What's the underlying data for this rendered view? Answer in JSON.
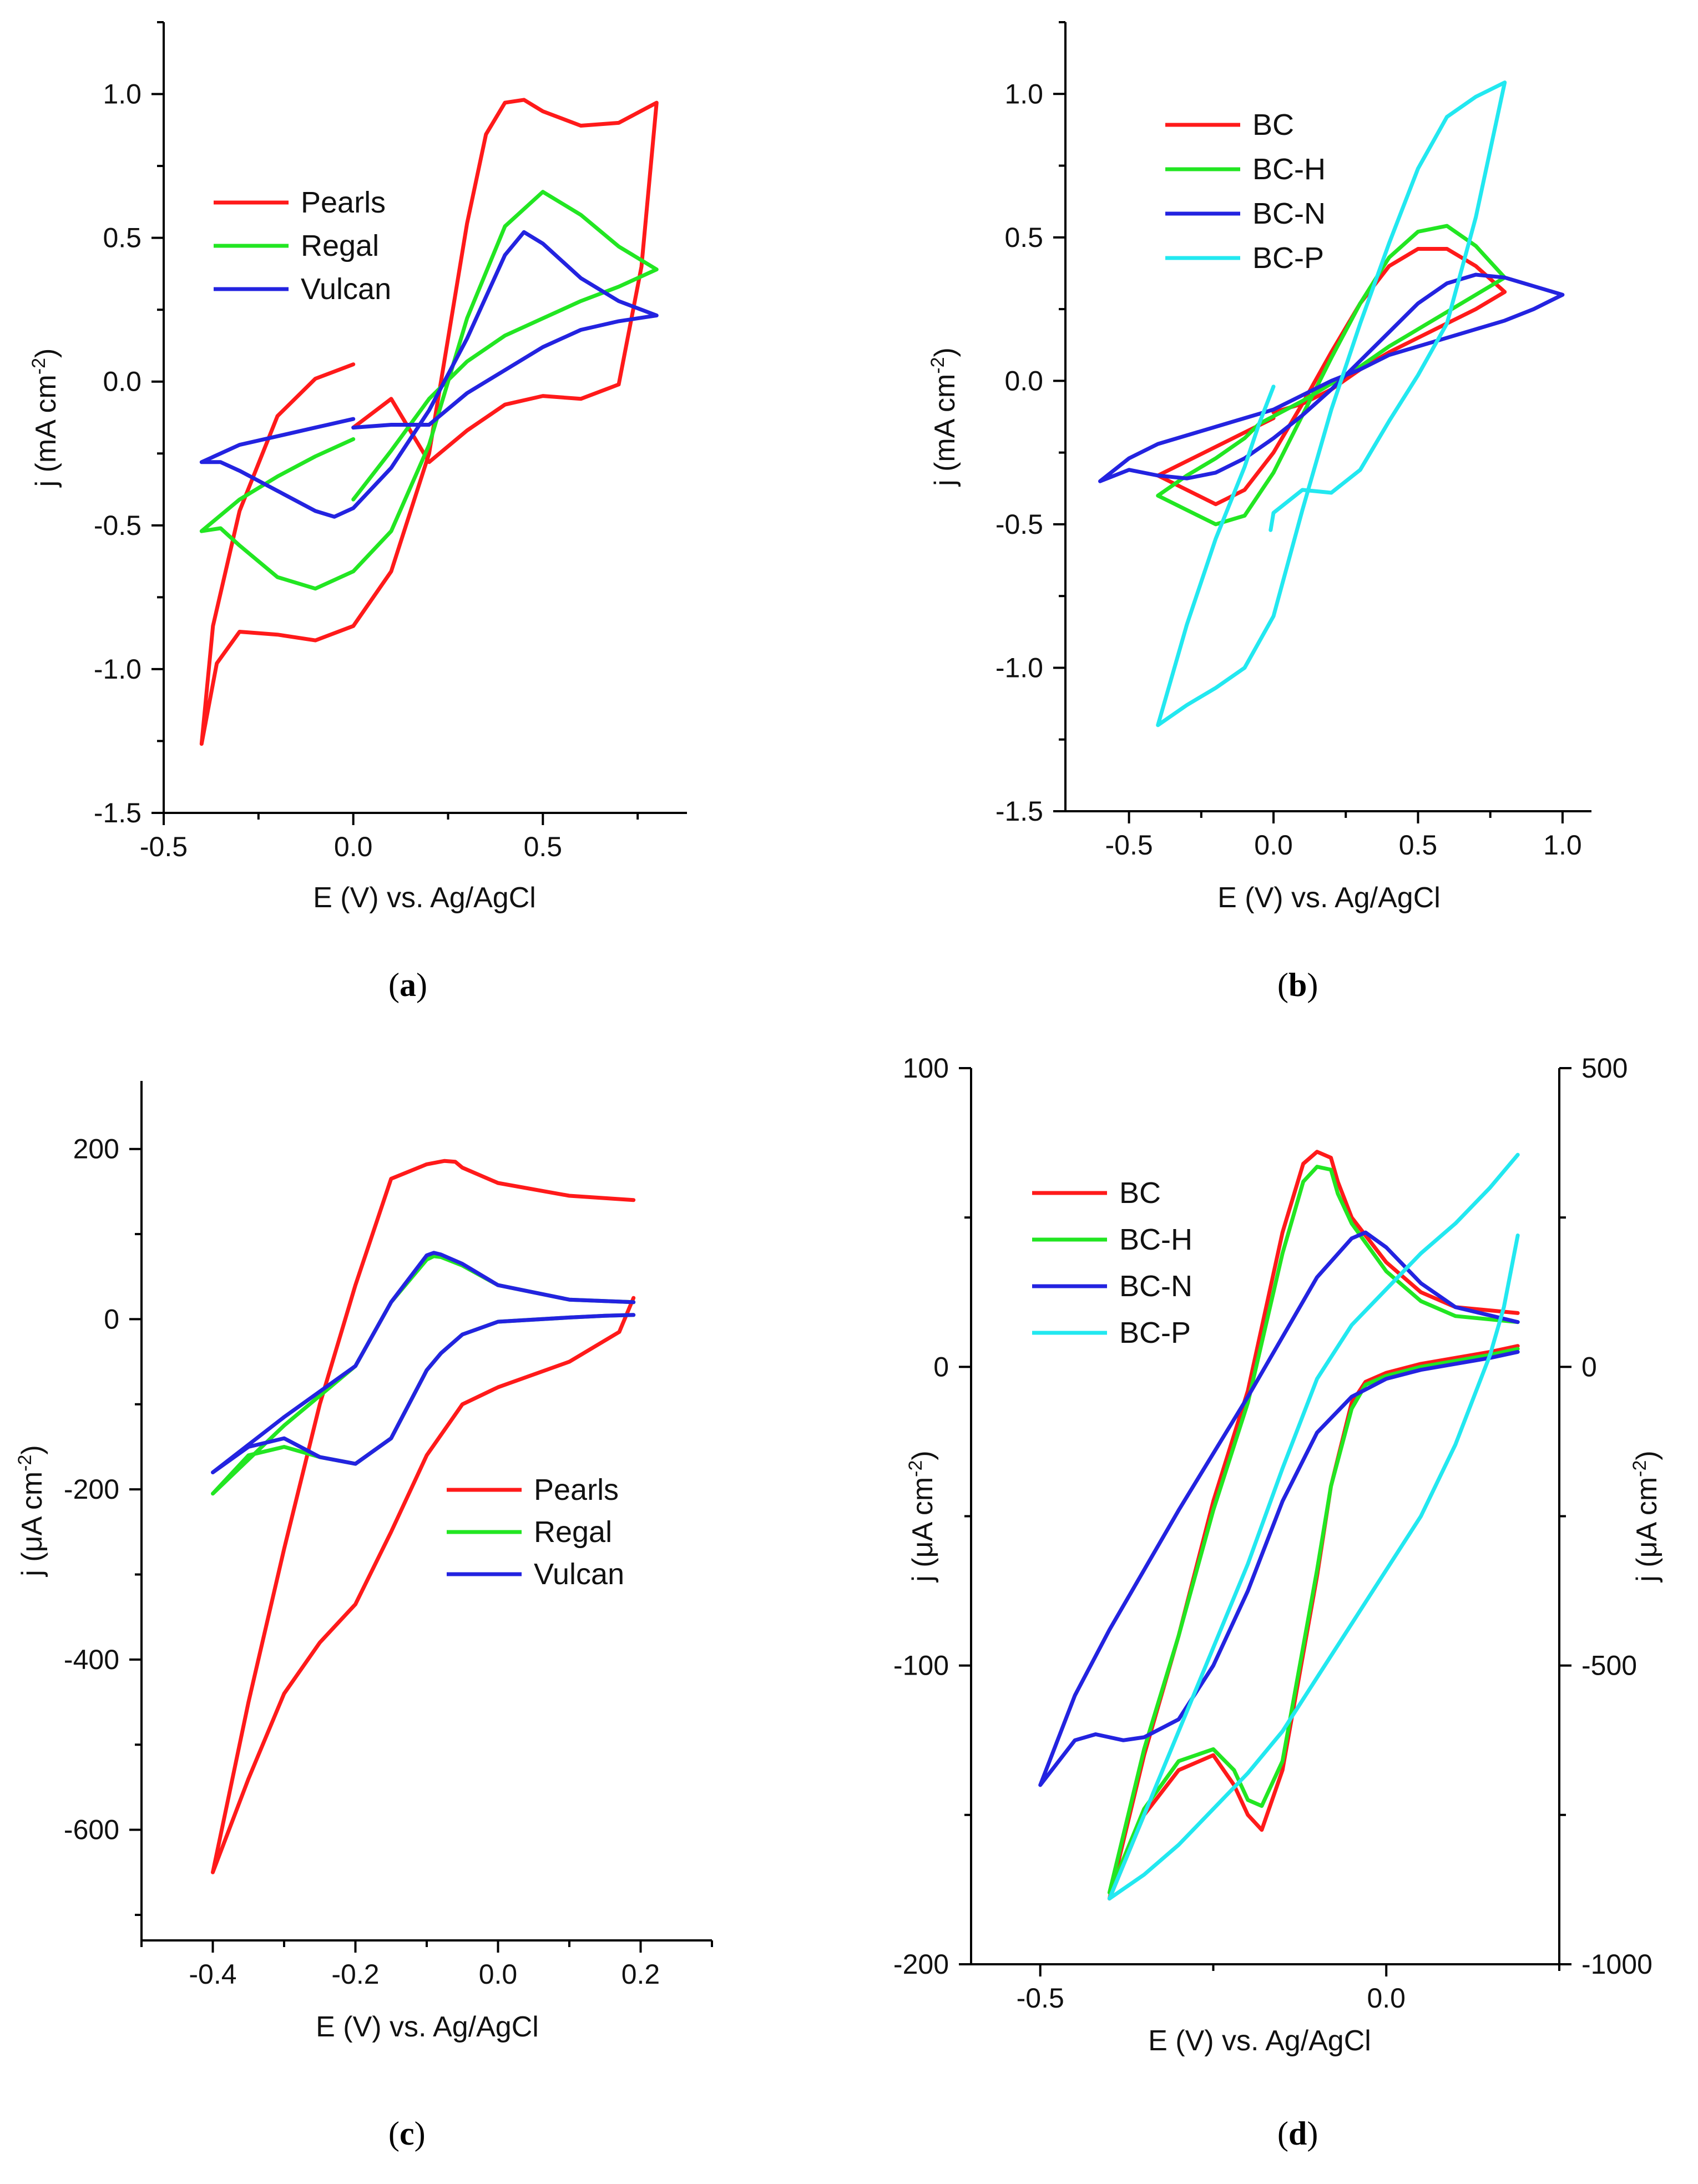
{
  "colors": {
    "Pearls": "#ff1a1a",
    "Regal": "#22e622",
    "Vulcan": "#2323e0",
    "BC": "#ff1a1a",
    "BC-H": "#22e622",
    "BC-N": "#2323e0",
    "BC-P": "#22e8f0",
    "right_axis": "#22e8f0"
  },
  "chart_data": [
    {
      "id": "a",
      "panel_label": "a",
      "type": "line",
      "xlabel": "E (V) vs. Ag/AgCl",
      "ylabel": "j (mA cm-2)",
      "xlim": [
        -0.5,
        0.88
      ],
      "ylim": [
        -1.5,
        1.25
      ],
      "xticks": [
        "-0.5",
        "0.0",
        "0.5"
      ],
      "yticks": [
        "-1.5",
        "-1.0",
        "-0.5",
        "0.0",
        "0.5",
        "1.0"
      ],
      "legend": {
        "entries": [
          "Pearls",
          "Regal",
          "Vulcan"
        ],
        "position": "upper-left"
      },
      "series": [
        {
          "name": "Pearls",
          "x": [
            0.0,
            -0.1,
            -0.2,
            -0.3,
            -0.37,
            -0.4,
            -0.36,
            -0.3,
            -0.2,
            -0.1,
            0.0,
            0.1,
            0.2,
            0.3,
            0.35,
            0.4,
            0.45,
            0.5,
            0.6,
            0.7,
            0.8,
            0.76,
            0.7,
            0.6,
            0.5,
            0.4,
            0.3,
            0.2,
            0.1,
            0.0
          ],
          "y": [
            0.06,
            0.01,
            -0.12,
            -0.45,
            -0.85,
            -1.26,
            -0.98,
            -0.87,
            -0.88,
            -0.9,
            -0.85,
            -0.66,
            -0.25,
            0.55,
            0.86,
            0.97,
            0.98,
            0.94,
            0.89,
            0.9,
            0.97,
            0.4,
            -0.01,
            -0.06,
            -0.05,
            -0.08,
            -0.17,
            -0.28,
            -0.06,
            -0.16
          ]
        },
        {
          "name": "Regal",
          "x": [
            0.0,
            -0.1,
            -0.2,
            -0.3,
            -0.4,
            -0.35,
            -0.3,
            -0.2,
            -0.1,
            0.0,
            0.1,
            0.2,
            0.3,
            0.4,
            0.5,
            0.6,
            0.7,
            0.8,
            0.7,
            0.6,
            0.5,
            0.4,
            0.3,
            0.2,
            0.1,
            0.0
          ],
          "y": [
            -0.2,
            -0.26,
            -0.33,
            -0.41,
            -0.52,
            -0.51,
            -0.57,
            -0.68,
            -0.72,
            -0.66,
            -0.52,
            -0.22,
            0.22,
            0.54,
            0.66,
            0.58,
            0.47,
            0.39,
            0.33,
            0.28,
            0.22,
            0.16,
            0.07,
            -0.06,
            -0.24,
            -0.41
          ]
        },
        {
          "name": "Vulcan",
          "x": [
            0.0,
            -0.1,
            -0.2,
            -0.3,
            -0.4,
            -0.35,
            -0.3,
            -0.2,
            -0.1,
            -0.05,
            0.0,
            0.1,
            0.2,
            0.3,
            0.4,
            0.45,
            0.5,
            0.6,
            0.7,
            0.8,
            0.7,
            0.6,
            0.5,
            0.4,
            0.3,
            0.2,
            0.1,
            0.0
          ],
          "y": [
            -0.13,
            -0.16,
            -0.19,
            -0.22,
            -0.28,
            -0.28,
            -0.31,
            -0.38,
            -0.45,
            -0.47,
            -0.44,
            -0.3,
            -0.1,
            0.15,
            0.44,
            0.52,
            0.48,
            0.36,
            0.28,
            0.23,
            0.21,
            0.18,
            0.12,
            0.04,
            -0.04,
            -0.15,
            -0.15,
            -0.16
          ]
        }
      ]
    },
    {
      "id": "b",
      "panel_label": "b",
      "type": "line",
      "xlabel": "E (V) vs. Ag/AgCl",
      "ylabel": "j (mA cm-2)",
      "xlim": [
        -0.72,
        1.1
      ],
      "ylim": [
        -1.5,
        1.25
      ],
      "xticks": [
        "-0.5",
        "0.0",
        "0.5",
        "1.0"
      ],
      "yticks": [
        "-1.5",
        "-1.0",
        "-0.5",
        "0.0",
        "0.5",
        "1.0"
      ],
      "legend": {
        "entries": [
          "BC",
          "BC-H",
          "BC-N",
          "BC-P"
        ],
        "position": "upper-left"
      },
      "series": [
        {
          "name": "BC",
          "x": [
            0.0,
            -0.1,
            -0.2,
            -0.3,
            -0.4,
            -0.3,
            -0.2,
            -0.1,
            0.0,
            0.1,
            0.2,
            0.3,
            0.4,
            0.5,
            0.6,
            0.7,
            0.8,
            0.7,
            0.6,
            0.5,
            0.4,
            0.3,
            0.2,
            0.1,
            0.0
          ],
          "y": [
            -0.13,
            -0.18,
            -0.23,
            -0.28,
            -0.33,
            -0.38,
            -0.43,
            -0.38,
            -0.25,
            -0.08,
            0.1,
            0.27,
            0.4,
            0.46,
            0.46,
            0.4,
            0.31,
            0.25,
            0.2,
            0.15,
            0.1,
            0.04,
            -0.03,
            -0.08,
            -0.11
          ]
        },
        {
          "name": "BC-H",
          "x": [
            -0.05,
            -0.1,
            -0.2,
            -0.3,
            -0.4,
            -0.3,
            -0.2,
            -0.1,
            0.0,
            0.1,
            0.2,
            0.3,
            0.4,
            0.5,
            0.6,
            0.7,
            0.8,
            0.7,
            0.6,
            0.5,
            0.4,
            0.3,
            0.2,
            0.1,
            -0.05
          ],
          "y": [
            -0.15,
            -0.2,
            -0.27,
            -0.33,
            -0.4,
            -0.45,
            -0.5,
            -0.47,
            -0.32,
            -0.12,
            0.08,
            0.27,
            0.43,
            0.52,
            0.54,
            0.47,
            0.36,
            0.3,
            0.24,
            0.18,
            0.12,
            0.05,
            -0.01,
            -0.07,
            -0.15
          ]
        },
        {
          "name": "BC-N",
          "x": [
            0.0,
            -0.1,
            -0.2,
            -0.3,
            -0.4,
            -0.5,
            -0.6,
            -0.5,
            -0.4,
            -0.3,
            -0.2,
            -0.1,
            0.0,
            0.1,
            0.2,
            0.3,
            0.4,
            0.5,
            0.6,
            0.7,
            0.8,
            0.9,
            1.0,
            0.9,
            0.8,
            0.7,
            0.6,
            0.5,
            0.4,
            0.3,
            0.2,
            0.1,
            0.0
          ],
          "y": [
            -0.1,
            -0.13,
            -0.16,
            -0.19,
            -0.22,
            -0.27,
            -0.35,
            -0.31,
            -0.33,
            -0.34,
            -0.32,
            -0.27,
            -0.2,
            -0.12,
            -0.03,
            0.07,
            0.17,
            0.27,
            0.34,
            0.37,
            0.36,
            0.33,
            0.3,
            0.25,
            0.21,
            0.18,
            0.15,
            0.12,
            0.09,
            0.04,
            0.0,
            -0.05,
            -0.1
          ]
        },
        {
          "name": "BC-P",
          "x": [
            0.0,
            -0.05,
            -0.1,
            -0.2,
            -0.3,
            -0.4,
            -0.3,
            -0.2,
            -0.1,
            0.0,
            0.1,
            0.2,
            0.3,
            0.4,
            0.5,
            0.6,
            0.7,
            0.8,
            0.7,
            0.6,
            0.5,
            0.4,
            0.3,
            0.2,
            0.1,
            0.0,
            -0.01
          ],
          "y": [
            -0.02,
            -0.15,
            -0.3,
            -0.55,
            -0.85,
            -1.2,
            -1.13,
            -1.07,
            -1.0,
            -0.82,
            -0.45,
            -0.1,
            0.2,
            0.48,
            0.74,
            0.92,
            0.99,
            1.04,
            0.57,
            0.2,
            0.02,
            -0.14,
            -0.31,
            -0.39,
            -0.38,
            -0.46,
            -0.52
          ]
        }
      ]
    },
    {
      "id": "c",
      "panel_label": "c",
      "type": "line",
      "xlabel": "E (V) vs. Ag/AgCl",
      "ylabel": "j (μA cm-2)",
      "xlim": [
        -0.5,
        0.3
      ],
      "ylim": [
        -730,
        280
      ],
      "xticks": [
        "-0.4",
        "-0.2",
        "0.0",
        "0.2"
      ],
      "yticks": [
        "-600",
        "-400",
        "-200",
        "0",
        "200"
      ],
      "legend": {
        "entries": [
          "Pearls",
          "Regal",
          "Vulcan"
        ],
        "position": "lower-right"
      },
      "series": [
        {
          "name": "Pearls",
          "x": [
            0.19,
            0.17,
            0.1,
            0.0,
            -0.05,
            -0.1,
            -0.15,
            -0.2,
            -0.25,
            -0.3,
            -0.35,
            -0.4,
            -0.35,
            -0.3,
            -0.25,
            -0.2,
            -0.15,
            -0.1,
            -0.075,
            -0.06,
            -0.05,
            0.0,
            0.1,
            0.19
          ],
          "y": [
            25,
            -15,
            -50,
            -80,
            -100,
            -160,
            -250,
            -335,
            -380,
            -440,
            -540,
            -650,
            -450,
            -270,
            -100,
            40,
            165,
            182,
            186,
            185,
            178,
            160,
            145,
            140
          ]
        },
        {
          "name": "Regal",
          "x": [
            0.19,
            0.15,
            0.1,
            0.0,
            -0.05,
            -0.08,
            -0.1,
            -0.15,
            -0.2,
            -0.25,
            -0.3,
            -0.35,
            -0.4,
            -0.3,
            -0.2,
            -0.15,
            -0.1,
            -0.09,
            -0.08,
            -0.05,
            0.0,
            0.1,
            0.19
          ],
          "y": [
            5,
            4,
            2,
            -3,
            -18,
            -40,
            -60,
            -140,
            -170,
            -162,
            -150,
            -160,
            -205,
            -125,
            -55,
            20,
            70,
            74,
            73,
            63,
            40,
            23,
            20
          ]
        },
        {
          "name": "Vulcan",
          "x": [
            0.19,
            0.15,
            0.1,
            0.0,
            -0.05,
            -0.08,
            -0.1,
            -0.15,
            -0.2,
            -0.25,
            -0.3,
            -0.35,
            -0.4,
            -0.3,
            -0.2,
            -0.15,
            -0.1,
            -0.09,
            -0.08,
            -0.05,
            0.0,
            0.1,
            0.19
          ],
          "y": [
            5,
            4,
            2,
            -3,
            -18,
            -40,
            -60,
            -140,
            -170,
            -162,
            -140,
            -150,
            -180,
            -115,
            -55,
            20,
            75,
            78,
            76,
            65,
            40,
            23,
            20
          ]
        }
      ]
    },
    {
      "id": "d",
      "panel_label": "d",
      "type": "line",
      "xlabel": "E (V) vs. Ag/AgCl",
      "ylabel": "j (μA cm-2)",
      "ylabel_right": "j (μA cm-2)",
      "xlim": [
        -0.6,
        0.25
      ],
      "ylim": [
        -200,
        100
      ],
      "ylim_right": [
        -1000,
        500
      ],
      "xticks": [
        "-0.5",
        "0.0"
      ],
      "yticks": [
        "-200",
        "-100",
        "0",
        "100"
      ],
      "yticks_right": [
        "-1000",
        "-500",
        "0",
        "500"
      ],
      "legend": {
        "entries": [
          "BC",
          "BC-H",
          "BC-N",
          "BC-P"
        ],
        "position": "upper-left"
      },
      "series": [
        {
          "name": "BC",
          "axis": "left",
          "x": [
            0.19,
            0.15,
            0.1,
            0.05,
            0.0,
            -0.03,
            -0.05,
            -0.08,
            -0.1,
            -0.15,
            -0.18,
            -0.2,
            -0.22,
            -0.25,
            -0.3,
            -0.35,
            -0.4,
            -0.35,
            -0.3,
            -0.25,
            -0.2,
            -0.15,
            -0.12,
            -0.1,
            -0.08,
            -0.07,
            -0.05,
            0.0,
            0.05,
            0.1,
            0.19
          ],
          "y": [
            7,
            5,
            3,
            1,
            -2,
            -5,
            -12,
            -40,
            -70,
            -135,
            -155,
            -150,
            -140,
            -130,
            -135,
            -150,
            -178,
            -130,
            -90,
            -45,
            -8,
            45,
            68,
            72,
            70,
            62,
            50,
            35,
            25,
            20,
            18
          ]
        },
        {
          "name": "BC-H",
          "axis": "left",
          "x": [
            0.19,
            0.15,
            0.1,
            0.05,
            0.0,
            -0.03,
            -0.05,
            -0.08,
            -0.1,
            -0.15,
            -0.18,
            -0.2,
            -0.22,
            -0.25,
            -0.3,
            -0.35,
            -0.4,
            -0.35,
            -0.3,
            -0.25,
            -0.2,
            -0.15,
            -0.12,
            -0.1,
            -0.08,
            -0.07,
            -0.05,
            0.0,
            0.05,
            0.1,
            0.19
          ],
          "y": [
            6,
            4,
            2,
            0,
            -3,
            -6,
            -14,
            -40,
            -68,
            -132,
            -147,
            -145,
            -135,
            -128,
            -132,
            -148,
            -176,
            -128,
            -90,
            -48,
            -12,
            38,
            62,
            67,
            66,
            58,
            48,
            32,
            22,
            17,
            15
          ]
        },
        {
          "name": "BC-N",
          "axis": "left",
          "x": [
            0.19,
            0.15,
            0.1,
            0.05,
            0.0,
            -0.05,
            -0.1,
            -0.15,
            -0.2,
            -0.25,
            -0.3,
            -0.35,
            -0.38,
            -0.42,
            -0.45,
            -0.5,
            -0.45,
            -0.4,
            -0.35,
            -0.3,
            -0.2,
            -0.15,
            -0.1,
            -0.05,
            -0.03,
            0.0,
            0.05,
            0.1,
            0.19
          ],
          "y": [
            5,
            3,
            1,
            -1,
            -4,
            -10,
            -22,
            -45,
            -75,
            -100,
            -118,
            -124,
            -125,
            -123,
            -125,
            -140,
            -110,
            -88,
            -68,
            -48,
            -10,
            10,
            30,
            43,
            45,
            40,
            28,
            20,
            15
          ]
        },
        {
          "name": "BC-P",
          "axis": "right",
          "x": [
            0.19,
            0.17,
            0.15,
            0.1,
            0.05,
            0.0,
            -0.05,
            -0.1,
            -0.15,
            -0.2,
            -0.25,
            -0.3,
            -0.35,
            -0.4,
            -0.35,
            -0.3,
            -0.25,
            -0.2,
            -0.15,
            -0.1,
            -0.05,
            0.0,
            0.05,
            0.1,
            0.15,
            0.19
          ],
          "y": [
            220,
            100,
            20,
            -130,
            -250,
            -340,
            -430,
            -520,
            -610,
            -680,
            -740,
            -800,
            -850,
            -890,
            -750,
            -610,
            -470,
            -330,
            -170,
            -20,
            70,
            130,
            190,
            240,
            300,
            355
          ]
        }
      ]
    }
  ]
}
